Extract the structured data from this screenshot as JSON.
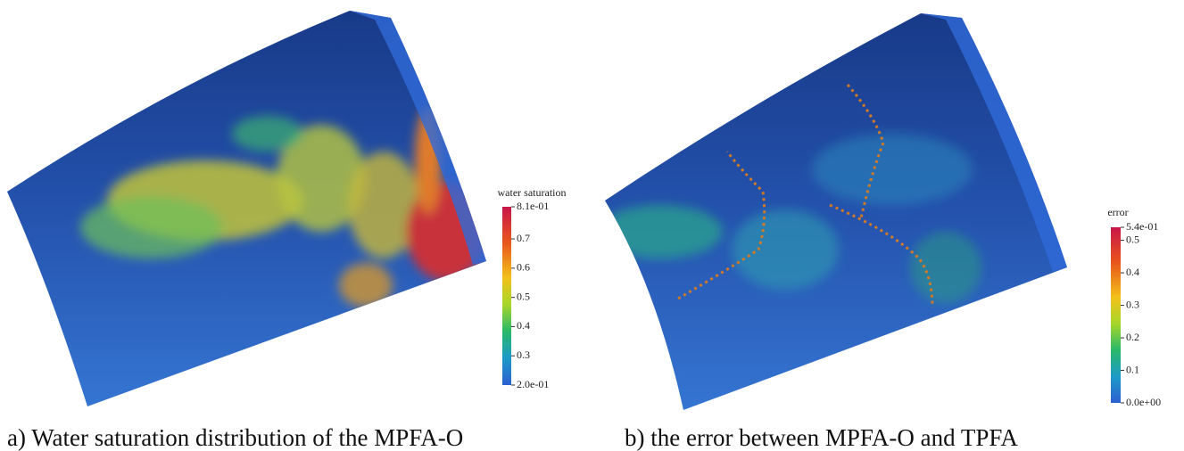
{
  "panels": [
    {
      "colorbar": {
        "title": "water saturation",
        "ticks": [
          {
            "value": 0.81,
            "label": "8.1e-01"
          },
          0.7,
          0.6,
          0.5,
          0.4,
          0.3,
          {
            "value": 0.2,
            "label": "2.0e-01"
          }
        ]
      },
      "caption": "a) Water saturation distribution of the MPFA-O"
    },
    {
      "colorbar": {
        "title": "error",
        "ticks": [
          {
            "value": 0.54,
            "label": "5.4e-01"
          },
          0.5,
          0.4,
          0.3,
          0.2,
          0.1,
          {
            "value": 0,
            "label": "0.0e+00"
          }
        ]
      },
      "caption": "b) the error between MPFA-O and TPFA"
    }
  ]
}
